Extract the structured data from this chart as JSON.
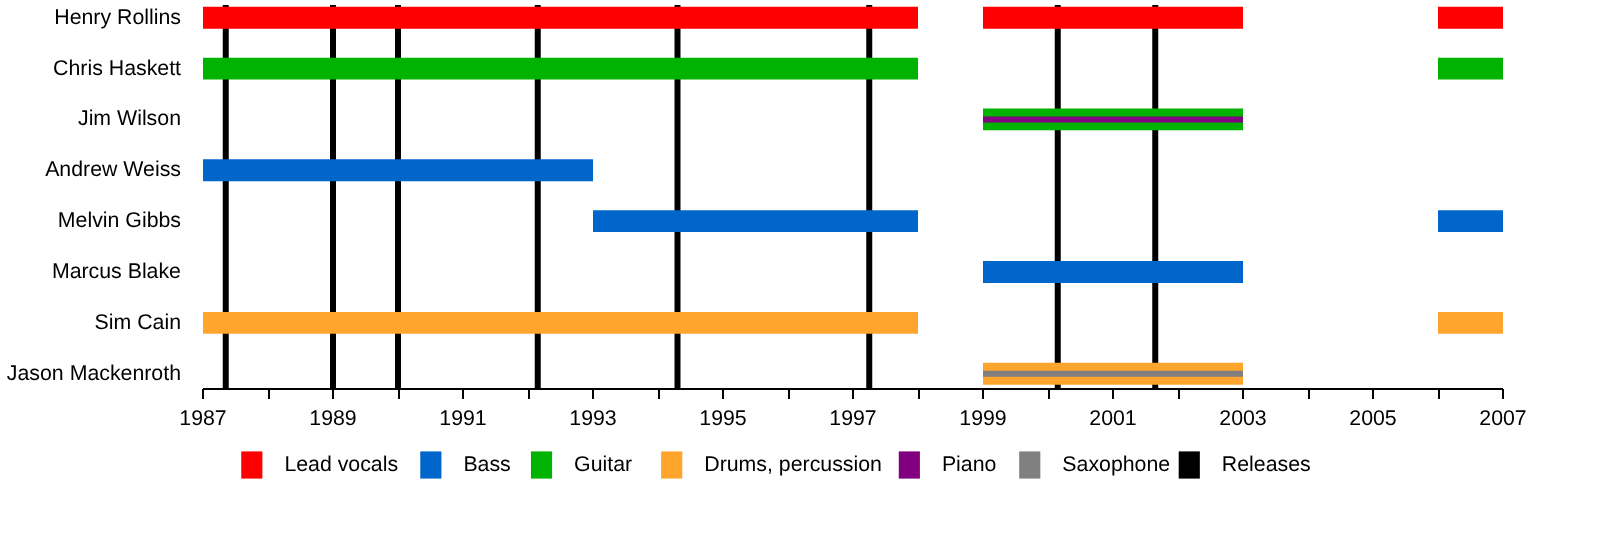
{
  "chart_data": {
    "type": "bar",
    "orientation": "horizontal",
    "categories": [
      "Henry Rollins",
      "Chris Haskett",
      "Jim Wilson",
      "Andrew Weiss",
      "Melvin Gibbs",
      "Marcus Blake",
      "Sim Cain",
      "Jason Mackenroth"
    ],
    "series": [
      {
        "name": "Lead vocals",
        "color": "#ff0000",
        "values": [
          11,
          null,
          null,
          null,
          null,
          null,
          null,
          null
        ],
        "base": [
          1987,
          null,
          null,
          null,
          null,
          null,
          null,
          null
        ]
      },
      {
        "color": "#ff0000",
        "values": [
          4,
          null,
          null,
          null,
          null,
          null,
          null,
          null
        ],
        "base": [
          1999,
          null,
          null,
          null,
          null,
          null,
          null,
          null
        ]
      },
      {
        "color": "#ff0000",
        "values": [
          1,
          null,
          null,
          null,
          null,
          null,
          null,
          null
        ],
        "base": [
          2006,
          null,
          null,
          null,
          null,
          null,
          null,
          null
        ]
      },
      {
        "name": "Bass",
        "color": "#0066cc",
        "values": [
          null,
          null,
          null,
          6,
          5,
          4,
          null,
          null
        ],
        "base": [
          null,
          null,
          null,
          1987,
          1993,
          1999,
          null,
          null
        ]
      },
      {
        "color": "#0066cc",
        "values": [
          null,
          null,
          null,
          null,
          1,
          null,
          null,
          null
        ],
        "base": [
          null,
          null,
          null,
          null,
          2006,
          null,
          null,
          null
        ]
      },
      {
        "name": "Guitar",
        "color": "#00b300",
        "values": [
          null,
          11,
          4,
          null,
          null,
          null,
          null,
          null
        ],
        "base": [
          null,
          1987,
          1999,
          null,
          null,
          null,
          null,
          null
        ]
      },
      {
        "color": "#00b300",
        "values": [
          null,
          1,
          null,
          null,
          null,
          null,
          null,
          null
        ],
        "base": [
          null,
          2006,
          null,
          null,
          null,
          null,
          null,
          null
        ]
      },
      {
        "name": "Drums, percussion",
        "color": "#ffa52e",
        "values": [
          null,
          null,
          null,
          null,
          null,
          null,
          11,
          4
        ],
        "base": [
          null,
          null,
          null,
          null,
          null,
          null,
          1987,
          1999
        ]
      },
      {
        "color": "#ffa52e",
        "values": [
          null,
          null,
          null,
          null,
          null,
          null,
          1,
          null
        ],
        "base": [
          null,
          null,
          null,
          null,
          null,
          null,
          2006,
          null
        ]
      },
      {
        "name": "Piano",
        "color": "#800080",
        "values": [
          null,
          null,
          4,
          null,
          null,
          null,
          null,
          null
        ],
        "base": [
          null,
          null,
          1999,
          null,
          null,
          null,
          null,
          null
        ]
      },
      {
        "name": "Saxophone",
        "color": "#808080",
        "values": [
          null,
          null,
          null,
          null,
          null,
          null,
          null,
          4
        ],
        "base": [
          null,
          null,
          null,
          null,
          null,
          null,
          null,
          1999
        ]
      }
    ],
    "ref_lines": [
      {
        "axis": "x",
        "value": 1987.35,
        "label": "Releases",
        "color": "#000000"
      },
      {
        "axis": "x",
        "value": 1989.0,
        "color": "#000000"
      },
      {
        "axis": "x",
        "value": 1990.0,
        "color": "#000000"
      },
      {
        "axis": "x",
        "value": 1992.15,
        "color": "#000000"
      },
      {
        "axis": "x",
        "value": 1994.3,
        "color": "#000000"
      },
      {
        "axis": "x",
        "value": 1997.25,
        "color": "#000000"
      },
      {
        "axis": "x",
        "value": 2000.15,
        "color": "#000000"
      },
      {
        "axis": "x",
        "value": 2001.65,
        "color": "#000000"
      }
    ],
    "xlim": [
      1987,
      2007
    ],
    "xticks": [
      1987,
      {
        "value": 1988,
        "label": null
      },
      1989,
      {
        "value": 1990,
        "label": null
      },
      1991,
      {
        "value": 1992,
        "label": null
      },
      1993,
      {
        "value": 1994,
        "label": null
      },
      1995,
      {
        "value": 1996,
        "label": null
      },
      1997,
      {
        "value": 1998,
        "label": null
      },
      1999,
      {
        "value": 2000,
        "label": null
      },
      2001,
      {
        "value": 2002,
        "label": null
      },
      2003,
      {
        "value": 2004,
        "label": null
      },
      2005,
      {
        "value": 2006,
        "label": null
      },
      2007
    ],
    "grid": false,
    "legend": "bottom"
  }
}
